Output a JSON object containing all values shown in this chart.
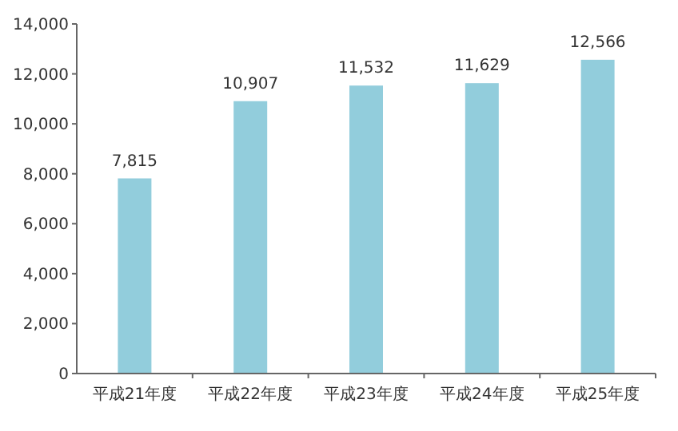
{
  "chart_data": {
    "type": "bar",
    "categories": [
      "平成21年度",
      "平成22年度",
      "平成23年度",
      "平成24年度",
      "平成25年度"
    ],
    "values": [
      7815,
      10907,
      11532,
      11629,
      12566
    ],
    "color": "#92cddc",
    "ylim": [
      0,
      14000
    ],
    "yticks": [
      0,
      {
        "value": 2000,
        "label": "2,000"
      },
      {
        "value": 4000,
        "label": "4,000"
      },
      {
        "value": 6000,
        "label": "6,000"
      },
      {
        "value": 8000,
        "label": "8,000"
      },
      {
        "value": 10000,
        "label": "10,000"
      },
      {
        "value": 12000,
        "label": "12,000"
      },
      {
        "value": 14000,
        "label": "14,000"
      }
    ],
    "value_labels": [
      "7,815",
      "10,907",
      "11,532",
      "11,629",
      "12,566"
    ],
    "grid": false
  }
}
